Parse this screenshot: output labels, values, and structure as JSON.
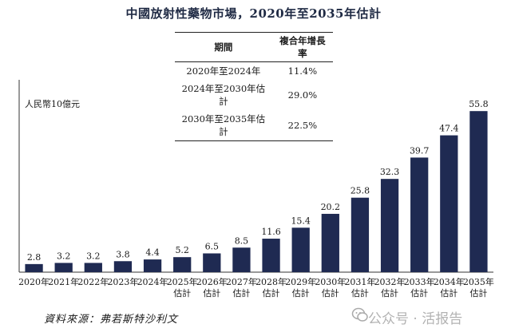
{
  "title": "中國放射性藥物市場，2020年至2035年估計",
  "cagr_table": {
    "headers": [
      "期間",
      "複合年增長率"
    ],
    "rows": [
      {
        "period": "2020年至2024年",
        "rate": "11.4%"
      },
      {
        "period": "2024年至2030年估計",
        "rate": "29.0%"
      },
      {
        "period": "2030年至2035年估計",
        "rate": "22.5%"
      }
    ]
  },
  "source": "資料來源：弗若斯特沙利文",
  "watermark": "公众号 · 活报告",
  "icons": {
    "watermark": "wechat-icon"
  },
  "colors": {
    "bar": "#1f2a52",
    "axis": "#333333"
  },
  "chart_data": {
    "type": "bar",
    "title": "中國放射性藥物市場，2020年至2035年估計",
    "ylabel": "人民幣10億元",
    "xlabel": "",
    "categories": [
      "2020年",
      "2021年",
      "2022年",
      "2023年",
      "2024年",
      "2025年\n估計",
      "2026年\n估計",
      "2027年\n估計",
      "2028年\n估計",
      "2029年\n估計",
      "2030年\n估計",
      "2031年\n估計",
      "2032年\n估計",
      "2033年\n估計",
      "2034年\n估計",
      "2035年\n估計"
    ],
    "values": [
      2.8,
      3.2,
      3.2,
      3.8,
      4.4,
      5.2,
      6.5,
      8.5,
      11.6,
      15.4,
      20.2,
      25.8,
      32.3,
      39.7,
      47.4,
      55.8
    ],
    "value_labels": [
      "2.8",
      "3.2",
      "3.2",
      "3.8",
      "4.4",
      "5.2",
      "6.5",
      "8.5",
      "11.6",
      "15.4",
      "20.2",
      "25.8",
      "32.3",
      "39.7",
      "47.4",
      "55.8"
    ],
    "ylim": [
      0,
      60
    ],
    "grid": false,
    "legend": "none"
  }
}
